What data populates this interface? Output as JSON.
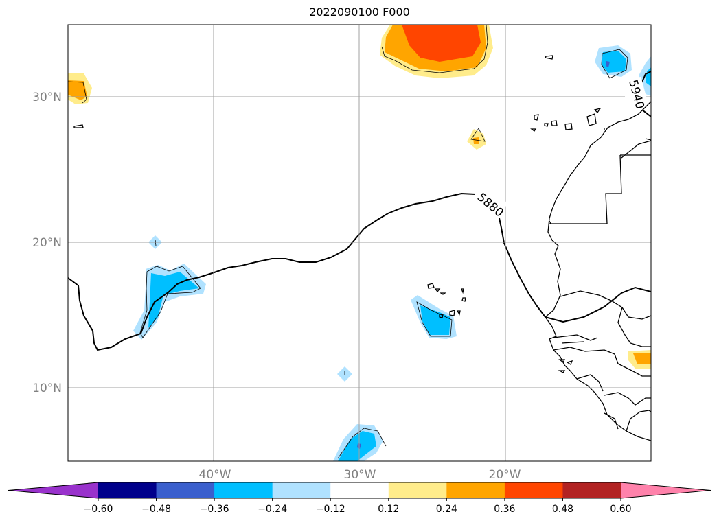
{
  "title": "2022090100 F000",
  "map": {
    "lat_labels": [
      "30°N",
      "20°N",
      "10°N"
    ],
    "lon_labels": [
      "40°W",
      "30°W",
      "20°W"
    ],
    "contour_labels": [
      "5880",
      "5940"
    ],
    "grid": true
  },
  "colorbar": {
    "orientation": "horizontal",
    "extend": "both",
    "tick_labels": [
      "−0.60",
      "−0.48",
      "−0.36",
      "−0.24",
      "−0.12",
      "0.12",
      "0.24",
      "0.36",
      "0.48",
      "0.60"
    ],
    "colors": [
      "#9932cc",
      "#00008b",
      "#3a5fcd",
      "#00bfff",
      "#b0e2ff",
      "#ffffff",
      "#ffec8b",
      "#ffa500",
      "#ff4500",
      "#b22222",
      "#ff82ab"
    ]
  }
}
